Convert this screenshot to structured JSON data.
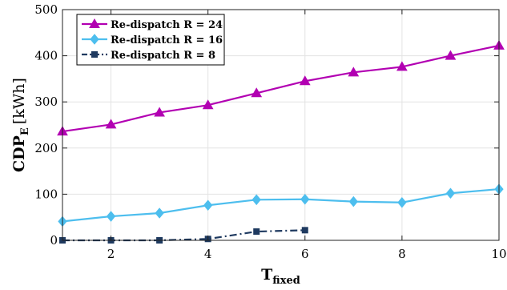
{
  "chart_data": {
    "type": "line",
    "xlabel": {
      "main": "T",
      "sub": "fixed"
    },
    "ylabel": {
      "main": "CDP",
      "sub": "E",
      "unit": "[kWh]"
    },
    "xlim": [
      1,
      10
    ],
    "ylim": [
      0,
      500
    ],
    "xticks": [
      2,
      4,
      6,
      8,
      10
    ],
    "yticks": [
      0,
      100,
      200,
      300,
      400,
      500
    ],
    "grid": true,
    "legend_position": "top-left",
    "series": [
      {
        "name": "Re-dispatch R = 24",
        "color": "#b200b2",
        "marker": "triangle",
        "line": "solid",
        "x": [
          1,
          2,
          3,
          4,
          5,
          6,
          7,
          8,
          9,
          10
        ],
        "y": [
          236,
          251,
          277,
          293,
          319,
          345,
          364,
          376,
          400,
          422
        ]
      },
      {
        "name": "Re-dispatch R = 16",
        "color": "#4dbeee",
        "marker": "diamond",
        "line": "solid",
        "x": [
          1,
          2,
          3,
          4,
          5,
          6,
          7,
          8,
          9,
          10
        ],
        "y": [
          41,
          52,
          59,
          76,
          88,
          89,
          84,
          82,
          102,
          111
        ]
      },
      {
        "name": "Re-dispatch R = 8",
        "color": "#1f3a60",
        "marker": "square",
        "line": "dashdot",
        "x": [
          1,
          2,
          3,
          4,
          5,
          6
        ],
        "y": [
          0,
          0,
          0,
          3,
          19,
          22
        ]
      }
    ]
  }
}
